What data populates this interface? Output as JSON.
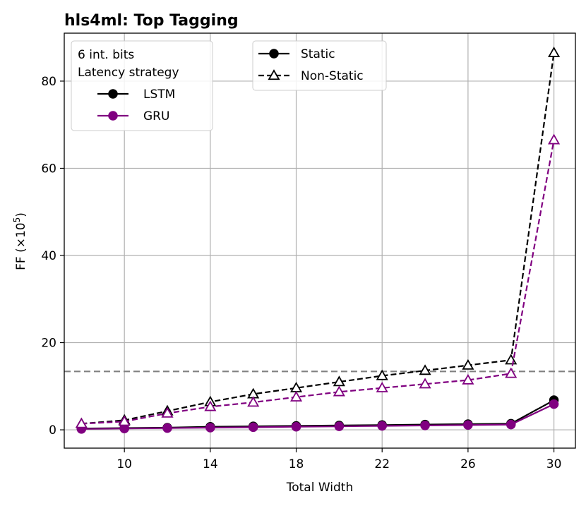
{
  "chart_data": {
    "type": "line",
    "title": "hls4ml: Top Tagging",
    "xlabel": "Total Width",
    "ylabel": "FF (×10",
    "ylabel_exp": "5",
    "ylabel_close": ")",
    "xlim": [
      7.2,
      31.0
    ],
    "ylim": [
      -4.2,
      91.0
    ],
    "x_ticks": [
      10,
      14,
      18,
      22,
      26,
      30
    ],
    "y_ticks": [
      0,
      20,
      40,
      60,
      80
    ],
    "grid": true,
    "hline": {
      "y": 13.4,
      "color": "#808080",
      "style": "dashed"
    },
    "x": [
      8,
      10,
      12,
      14,
      16,
      18,
      20,
      22,
      24,
      26,
      28,
      30
    ],
    "series": [
      {
        "model": "LSTM",
        "mode": "Static",
        "color": "#000000",
        "marker": "circle",
        "line": "solid",
        "values": [
          0.3,
          0.4,
          0.5,
          0.7,
          0.8,
          0.9,
          1.0,
          1.1,
          1.2,
          1.3,
          1.4,
          6.8
        ]
      },
      {
        "model": "LSTM",
        "mode": "Non-Static",
        "color": "#000000",
        "marker": "triangle",
        "line": "dashed",
        "values": [
          1.4,
          2.2,
          4.3,
          6.4,
          8.2,
          9.6,
          11.0,
          12.4,
          13.6,
          14.8,
          16.0,
          86.5
        ]
      },
      {
        "model": "GRU",
        "mode": "Static",
        "color": "#800080",
        "marker": "circle",
        "line": "solid",
        "values": [
          0.2,
          0.3,
          0.4,
          0.5,
          0.6,
          0.7,
          0.8,
          0.9,
          1.0,
          1.1,
          1.2,
          5.9
        ]
      },
      {
        "model": "GRU",
        "mode": "Non-Static",
        "color": "#800080",
        "marker": "triangle",
        "line": "dashed",
        "values": [
          1.4,
          1.9,
          3.8,
          5.3,
          6.3,
          7.5,
          8.7,
          9.6,
          10.5,
          11.4,
          12.9,
          66.5
        ]
      }
    ],
    "legend_models": {
      "placement": "top-left",
      "title_lines": [
        "6 int. bits",
        "Latency strategy"
      ],
      "entries": [
        {
          "label": "LSTM",
          "color": "#000000"
        },
        {
          "label": "GRU",
          "color": "#800080"
        }
      ]
    },
    "legend_styles": {
      "placement": "top-center",
      "entries": [
        {
          "label": "Static",
          "marker": "circle",
          "line": "solid"
        },
        {
          "label": "Non-Static",
          "marker": "triangle",
          "line": "dashed"
        }
      ]
    }
  }
}
